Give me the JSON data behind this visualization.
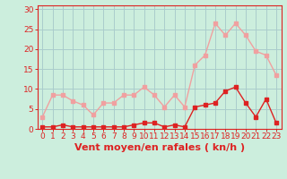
{
  "hours": [
    0,
    1,
    2,
    3,
    4,
    5,
    6,
    7,
    8,
    9,
    10,
    11,
    12,
    13,
    14,
    15,
    16,
    17,
    18,
    19,
    20,
    21,
    22,
    23
  ],
  "wind_avg": [
    0.5,
    0.5,
    1.0,
    0.5,
    0.5,
    0.5,
    0.5,
    0.5,
    0.5,
    1.0,
    1.5,
    1.5,
    0.5,
    1.0,
    0.5,
    5.5,
    6.0,
    6.5,
    9.5,
    10.5,
    6.5,
    3.0,
    7.5,
    1.5
  ],
  "wind_gust": [
    3.0,
    8.5,
    8.5,
    7.0,
    6.0,
    3.5,
    6.5,
    6.5,
    8.5,
    8.5,
    10.5,
    8.5,
    5.5,
    8.5,
    5.5,
    16.0,
    18.5,
    26.5,
    23.5,
    26.5,
    23.5,
    19.5,
    18.5,
    13.5
  ],
  "color_avg": "#dd2222",
  "color_gust": "#f0a0a0",
  "bg_color": "#cceedd",
  "grid_color": "#aacccc",
  "axis_color": "#dd2222",
  "xlabel": "Vent moyen/en rafales ( kn/h )",
  "ylabel_ticks": [
    0,
    5,
    10,
    15,
    20,
    25,
    30
  ],
  "ylim": [
    0,
    31
  ],
  "xlim": [
    -0.5,
    23.5
  ],
  "tick_fontsize": 6.5,
  "xlabel_fontsize": 8,
  "marker_size": 2.5,
  "line_width": 1.0
}
